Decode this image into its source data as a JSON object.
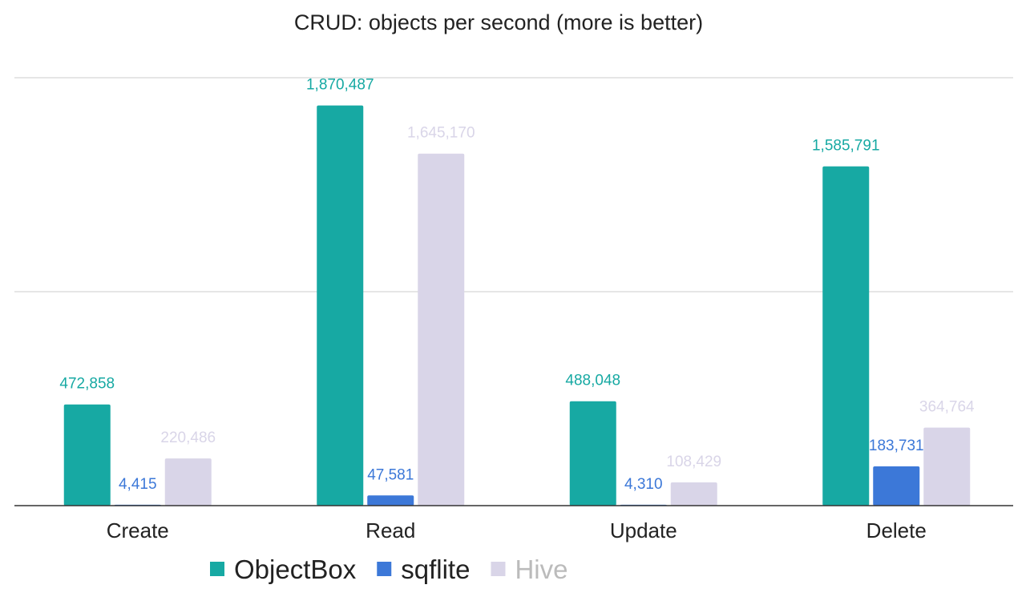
{
  "chart_data": {
    "type": "bar",
    "title": "CRUD: objects per second (more is better)",
    "categories": [
      "Create",
      "Read",
      "Update",
      "Delete"
    ],
    "series": [
      {
        "name": "ObjectBox",
        "color": "#17a9a3",
        "label_color": "#17a9a3",
        "values": [
          472858,
          1870487,
          488048,
          1585791
        ]
      },
      {
        "name": "sqflite",
        "color": "#3c78d8",
        "label_color": "#3c78d8",
        "values": [
          4415,
          47581,
          4310,
          183731
        ]
      },
      {
        "name": "Hive",
        "color": "#d9d5e8",
        "label_color": "#d9d5e8",
        "values": [
          220486,
          1645170,
          108429,
          364764
        ]
      }
    ],
    "value_labels": [
      [
        "472,858",
        "1,870,487",
        "488,048",
        "1,585,791"
      ],
      [
        "4,415",
        "47,581",
        "4,310",
        "183,731"
      ],
      [
        "220,486",
        "1,645,170",
        "108,429",
        "364,764"
      ]
    ],
    "ylim": [
      0,
      2000000
    ],
    "gridlines": [
      1000000,
      2000000
    ],
    "grid": true,
    "y_tick_labels_shown": false,
    "legend_position": "bottom"
  }
}
